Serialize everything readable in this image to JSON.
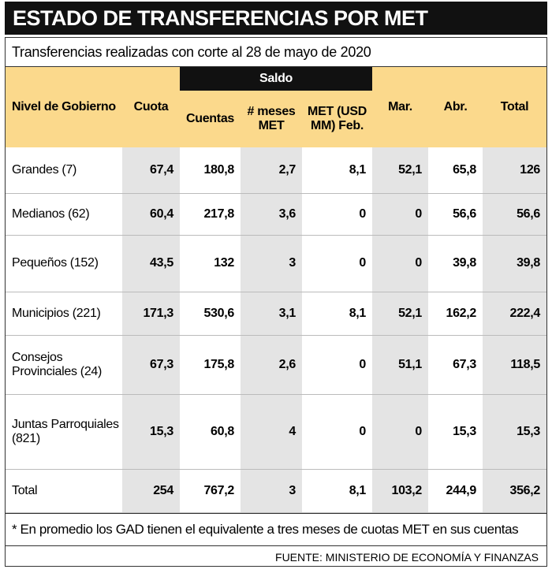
{
  "title": "ESTADO DE TRANSFERENCIAS POR MET",
  "subtitle": "Transferencias realizadas con corte al 28 de mayo de 2020",
  "table": {
    "group_header": "Saldo",
    "columns": [
      "Nivel de Gobierno",
      "Cuota",
      "Cuentas",
      "# meses MET",
      "MET (USD MM) Feb.",
      "Mar.",
      "Abr.",
      "Total"
    ],
    "rows": [
      [
        "Grandes (7)",
        "67,4",
        "180,8",
        "2,7",
        "8,1",
        "52,1",
        "65,8",
        "126"
      ],
      [
        "Medianos (62)",
        "60,4",
        "217,8",
        "3,6",
        "0",
        "0",
        "56,6",
        "56,6"
      ],
      [
        "Pequeños (152)",
        "43,5",
        "132",
        "3",
        "0",
        "0",
        "39,8",
        "39,8"
      ],
      [
        "Municipios (221)",
        "171,3",
        "530,6",
        "3,1",
        "8,1",
        "52,1",
        "162,2",
        "222,4"
      ],
      [
        "Consejos Provinciales (24)",
        "67,3",
        "175,8",
        "2,6",
        "0",
        "51,1",
        "67,3",
        "118,5"
      ],
      [
        "Juntas Parroquiales (821)",
        "15,3",
        "60,8",
        "4",
        "0",
        "0",
        "15,3",
        "15,3"
      ],
      [
        "Total",
        "254",
        "767,2",
        "3",
        "8,1",
        "103,2",
        "244,9",
        "356,2"
      ]
    ]
  },
  "footnote": "* En promedio los GAD tienen el equivalente a tres meses de cuotas MET en sus cuentas",
  "source": "FUENTE: MINISTERIO DE ECONOMÍA Y FINANZAS"
}
